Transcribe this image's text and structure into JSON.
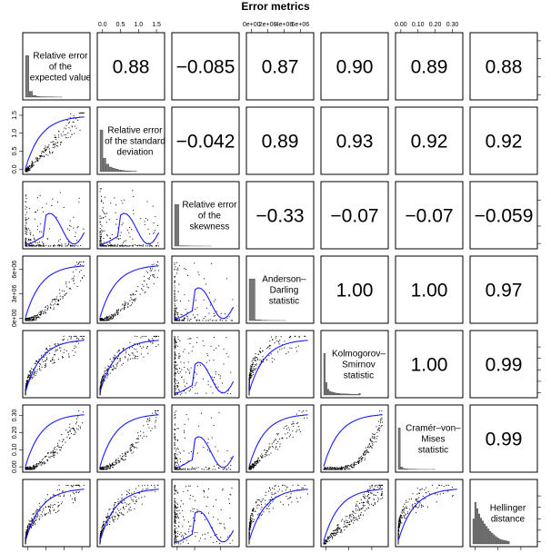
{
  "chart_data": {
    "type": "scatter",
    "title": "Error metrics",
    "variables": [
      {
        "name": "Relative error of the expected value",
        "label_lines": [
          "Relative error",
          "of the",
          "expected value"
        ]
      },
      {
        "name": "Relative error of the standard deviation",
        "label_lines": [
          "Relative error",
          "of the standard",
          "deviation"
        ]
      },
      {
        "name": "Relative error of the skewness",
        "label_lines": [
          "Relative error",
          "of the",
          "skewness"
        ]
      },
      {
        "name": "Anderson–Darling statistic",
        "label_lines": [
          "Anderson–",
          "Darling",
          "statistic"
        ]
      },
      {
        "name": "Kolmogorov–Smirnov statistic",
        "label_lines": [
          "Kolmogorov–",
          "Smirnov",
          "statistic"
        ]
      },
      {
        "name": "Cramér–von–Mises statistic",
        "label_lines": [
          "Cramér–von–",
          "Mises",
          "statistic"
        ]
      },
      {
        "name": "Hellinger distance",
        "label_lines": [
          "Hellinger",
          "distance"
        ]
      }
    ],
    "correlations": [
      {
        "row": 0,
        "col": 1,
        "label": "0.88"
      },
      {
        "row": 0,
        "col": 2,
        "label": "−0.085"
      },
      {
        "row": 0,
        "col": 3,
        "label": "0.87"
      },
      {
        "row": 0,
        "col": 4,
        "label": "0.90"
      },
      {
        "row": 0,
        "col": 5,
        "label": "0.89"
      },
      {
        "row": 0,
        "col": 6,
        "label": "0.88"
      },
      {
        "row": 1,
        "col": 2,
        "label": "−0.042"
      },
      {
        "row": 1,
        "col": 3,
        "label": "0.89"
      },
      {
        "row": 1,
        "col": 4,
        "label": "0.93"
      },
      {
        "row": 1,
        "col": 5,
        "label": "0.92"
      },
      {
        "row": 1,
        "col": 6,
        "label": "0.92"
      },
      {
        "row": 2,
        "col": 3,
        "label": "−0.33"
      },
      {
        "row": 2,
        "col": 4,
        "label": "−0.07"
      },
      {
        "row": 2,
        "col": 5,
        "label": "−0.07"
      },
      {
        "row": 2,
        "col": 6,
        "label": "−0.059"
      },
      {
        "row": 3,
        "col": 4,
        "label": "1.00"
      },
      {
        "row": 3,
        "col": 5,
        "label": "1.00"
      },
      {
        "row": 3,
        "col": 6,
        "label": "0.97"
      },
      {
        "row": 4,
        "col": 5,
        "label": "1.00"
      },
      {
        "row": 4,
        "col": 6,
        "label": "0.99"
      },
      {
        "row": 5,
        "col": 6,
        "label": "0.99"
      }
    ],
    "histograms": [
      {
        "var": 0,
        "range": [
          0,
          1.6
        ],
        "counts": [
          100,
          14,
          4,
          2,
          1,
          1,
          0.5,
          0.5,
          0.3,
          0.2
        ]
      },
      {
        "var": 1,
        "range": [
          0,
          1.6
        ],
        "counts": [
          100,
          32,
          18,
          11,
          8,
          6,
          4,
          3,
          2,
          1.5,
          1,
          0.8
        ]
      },
      {
        "var": 2,
        "range": [
          0,
          32000
        ],
        "counts": [
          100,
          1,
          0.5,
          0.3,
          0.2,
          0.2,
          0.1,
          0.1
        ]
      },
      {
        "var": 3,
        "range": [
          0,
          7000000
        ],
        "counts": [
          100,
          2,
          0.5,
          0.3,
          0.2,
          0.1
        ]
      },
      {
        "var": 4,
        "range": [
          0,
          1
        ],
        "counts": [
          100,
          30,
          14,
          9,
          7,
          6,
          5,
          4,
          4,
          3,
          3,
          3,
          2.5,
          2.5,
          2,
          2,
          2,
          1.5,
          1.5,
          4
        ]
      },
      {
        "var": 5,
        "range": [
          0,
          0.33
        ],
        "counts": [
          100,
          6,
          2.5,
          1.5,
          1,
          0.7,
          0.5,
          0.4,
          0.3,
          0.2,
          0.2,
          0.2,
          0.15,
          0.15,
          0.15,
          0.3
        ]
      },
      {
        "var": 6,
        "range": [
          0,
          0.95
        ],
        "counts": [
          60,
          100,
          85,
          72,
          62,
          55,
          48,
          42,
          36,
          30,
          26,
          22,
          18,
          15,
          12,
          10,
          9,
          8,
          7,
          6
        ]
      }
    ],
    "axes": {
      "top": [
        {
          "col": 1,
          "ticks": [
            0,
            0.5,
            1,
            1.5
          ],
          "labels": [
            "0.0",
            "0.5",
            "1.0",
            "1.5"
          ],
          "range": [
            -0.07,
            1.65
          ]
        },
        {
          "col": 3,
          "ticks": [
            0,
            2000000,
            4000000,
            6000000
          ],
          "labels": [
            "0e+00",
            "2e+06",
            "4e+06",
            "6e+06"
          ],
          "range": [
            -300000,
            7300000
          ]
        },
        {
          "col": 5,
          "ticks": [
            0,
            0.1,
            0.2,
            0.3
          ],
          "labels": [
            "0.00",
            "0.10",
            "0.20",
            "0.30"
          ],
          "range": [
            -0.015,
            0.345
          ]
        }
      ],
      "bottom": [
        {
          "col": 0,
          "ticks": [
            0,
            0.5,
            1,
            1.5
          ],
          "labels": [
            "0.0",
            "0.5",
            "1.0",
            "1.5"
          ],
          "range": [
            -0.07,
            1.65
          ]
        },
        {
          "col": 2,
          "ticks": [
            0,
            10000,
            25000
          ],
          "labels": [
            "0",
            "10000",
            "25000"
          ],
          "range": [
            -1500,
            34000
          ]
        },
        {
          "col": 4,
          "ticks": [
            0,
            0.4,
            0.8
          ],
          "labels": [
            "0.0",
            "0.4",
            "0.8"
          ],
          "range": [
            -0.04,
            1.04
          ]
        },
        {
          "col": 6,
          "ticks": [
            0,
            0.4,
            0.8
          ],
          "labels": [
            "0.0",
            "0.4",
            "0.8"
          ],
          "range": [
            -0.04,
            1.04
          ]
        }
      ],
      "left": [
        {
          "row": 1,
          "ticks": [
            0,
            0.5,
            1,
            1.5
          ],
          "labels": [
            "0.0",
            "0.5",
            "1.0",
            "1.5"
          ],
          "range": [
            -0.07,
            1.65
          ]
        },
        {
          "row": 3,
          "ticks": [
            0,
            3000000,
            6000000
          ],
          "labels": [
            "0e+00",
            "3e+06",
            "6e+06"
          ],
          "range": [
            -300000,
            7300000
          ]
        },
        {
          "row": 5,
          "ticks": [
            0,
            0.1,
            0.2,
            0.3
          ],
          "labels": [
            "0.00",
            "0.10",
            "0.20",
            "0.30"
          ],
          "range": [
            -0.015,
            0.345
          ]
        }
      ],
      "right": [
        {
          "row": 0,
          "ticks": [
            0,
            0.5,
            1,
            1.5
          ],
          "labels": [
            "",
            "",
            "",
            ""
          ],
          "range": [
            -0.07,
            1.65
          ]
        },
        {
          "row": 2,
          "ticks": [
            0,
            10000,
            25000
          ],
          "labels": [
            "",
            "",
            ""
          ],
          "range": [
            -1500,
            34000
          ]
        },
        {
          "row": 4,
          "ticks": [
            0,
            0.2,
            0.4,
            0.6,
            0.8
          ],
          "labels": [
            "",
            "",
            "",
            "",
            ""
          ],
          "range": [
            -0.04,
            1.04
          ]
        },
        {
          "row": 6,
          "ticks": [
            0,
            0.2,
            0.4,
            0.6,
            0.8
          ],
          "labels": [
            "",
            "",
            "",
            "",
            ""
          ],
          "range": [
            -0.04,
            1.04
          ]
        }
      ]
    },
    "ranges": [
      [
        -0.07,
        1.65
      ],
      [
        -0.07,
        1.65
      ],
      [
        -1500,
        34000
      ],
      [
        -300000,
        7300000
      ],
      [
        -0.04,
        1.04
      ],
      [
        -0.015,
        0.345
      ],
      [
        -0.04,
        1.04
      ]
    ],
    "point_color": "#000000",
    "smooth_color": "#1a1aff",
    "hist_color": "#777777",
    "grid": false,
    "legend": "none"
  }
}
